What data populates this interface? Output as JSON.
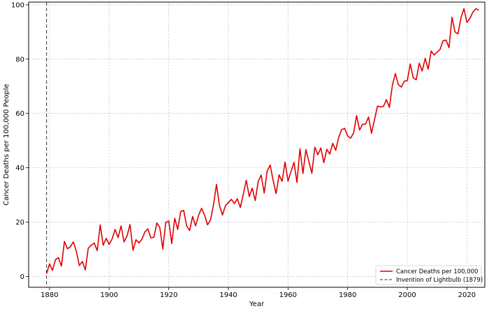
{
  "chart_data": {
    "type": "line",
    "title": "",
    "xlabel": "Year",
    "ylabel": "Cancer Deaths per 100,000 People",
    "xlim": [
      1873,
      2026
    ],
    "ylim": [
      -4,
      101
    ],
    "x_ticks": [
      1880,
      1900,
      1920,
      1940,
      1960,
      1980,
      2000,
      2020
    ],
    "y_ticks": [
      0,
      20,
      40,
      60,
      80,
      100
    ],
    "grid": true,
    "legend_position": "bottom-right",
    "series": [
      {
        "name": "Cancer Deaths per 100,000",
        "color": "#dd0000",
        "x_start": 1879,
        "x_step": 1,
        "values": [
          1.0,
          4.6,
          2.2,
          6.2,
          6.9,
          3.8,
          12.9,
          10.2,
          10.9,
          12.7,
          9.3,
          4.0,
          5.5,
          2.4,
          10.4,
          11.5,
          12.3,
          9.5,
          19.0,
          11.5,
          14.0,
          11.8,
          13.8,
          17.3,
          14.3,
          18.6,
          12.7,
          14.9,
          19.1,
          9.6,
          13.5,
          12.3,
          13.7,
          16.4,
          17.5,
          14.2,
          14.4,
          19.7,
          18.0,
          10.1,
          19.9,
          20.4,
          12.1,
          21.4,
          17.3,
          23.9,
          24.3,
          18.6,
          16.9,
          22.1,
          18.6,
          22.5,
          25.1,
          22.6,
          19.0,
          20.8,
          26.3,
          33.9,
          26.1,
          22.6,
          26.0,
          27.2,
          28.4,
          26.8,
          28.6,
          25.4,
          30.3,
          35.4,
          29.4,
          32.5,
          27.9,
          35.0,
          37.3,
          30.7,
          38.8,
          41.0,
          35.4,
          30.5,
          37.4,
          35.0,
          42.1,
          35.1,
          38.6,
          42.0,
          34.6,
          47.0,
          37.9,
          46.7,
          42.3,
          38.0,
          47.6,
          44.8,
          47.3,
          41.9,
          46.8,
          45.0,
          49.0,
          46.4,
          51.2,
          54.1,
          54.5,
          51.7,
          50.9,
          52.8,
          59.2,
          53.9,
          56.0,
          56.1,
          58.7,
          52.7,
          57.7,
          62.7,
          62.4,
          62.6,
          65.1,
          62.2,
          70.4,
          74.7,
          70.6,
          69.7,
          71.9,
          72.1,
          78.2,
          73.1,
          72.4,
          78.5,
          75.6,
          80.3,
          76.3,
          83.0,
          81.5,
          82.6,
          83.6,
          86.8,
          87.0,
          84.2,
          95.4,
          90.0,
          89.3,
          95.2,
          98.6,
          93.5,
          95.0,
          97.3,
          98.6,
          98.0
        ]
      }
    ],
    "vlines": [
      {
        "name": "Invention of Lightbulb (1879)",
        "x": 1879,
        "color": "#555555",
        "style": "dashed"
      }
    ]
  }
}
